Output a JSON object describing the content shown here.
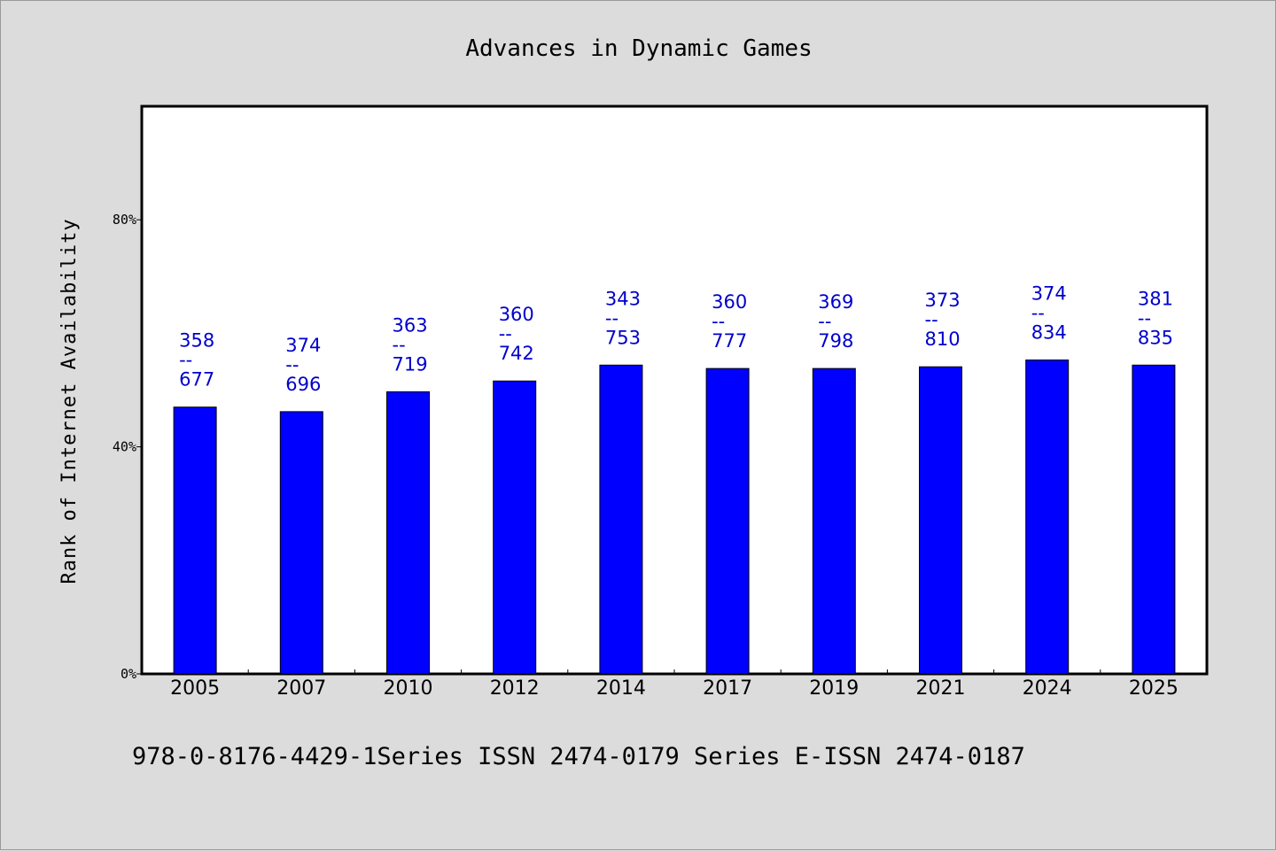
{
  "chart_data": {
    "type": "bar",
    "title": "Advances in Dynamic Games",
    "xlabel": "",
    "ylabel": "Rank of Internet Availability",
    "ylim": [
      0,
      100
    ],
    "ytick_values": [
      0,
      40,
      80
    ],
    "ytick_labels": [
      "0%",
      "40%",
      "80%"
    ],
    "grid": false,
    "bar_color": "#0000ff",
    "label_color": "#0000cc",
    "categories": [
      "2005",
      "2007",
      "2010",
      "2012",
      "2014",
      "2017",
      "2019",
      "2021",
      "2024",
      "2025"
    ],
    "values": [
      47.0,
      46.2,
      49.7,
      51.6,
      54.4,
      53.8,
      53.8,
      54.1,
      55.3,
      54.4
    ],
    "data_labels": [
      {
        "top": "358",
        "sep": "--",
        "bottom": "677"
      },
      {
        "top": "374",
        "sep": "--",
        "bottom": "696"
      },
      {
        "top": "363",
        "sep": "--",
        "bottom": "719"
      },
      {
        "top": "360",
        "sep": "--",
        "bottom": "742"
      },
      {
        "top": "343",
        "sep": "--",
        "bottom": "753"
      },
      {
        "top": "360",
        "sep": "--",
        "bottom": "777"
      },
      {
        "top": "369",
        "sep": "--",
        "bottom": "798"
      },
      {
        "top": "373",
        "sep": "--",
        "bottom": "810"
      },
      {
        "top": "374",
        "sep": "--",
        "bottom": "834"
      },
      {
        "top": "381",
        "sep": "--",
        "bottom": "835"
      }
    ]
  },
  "footnote": "978-0-8176-4429-1Series ISSN 2474-0179 Series E-ISSN 2474-0187"
}
